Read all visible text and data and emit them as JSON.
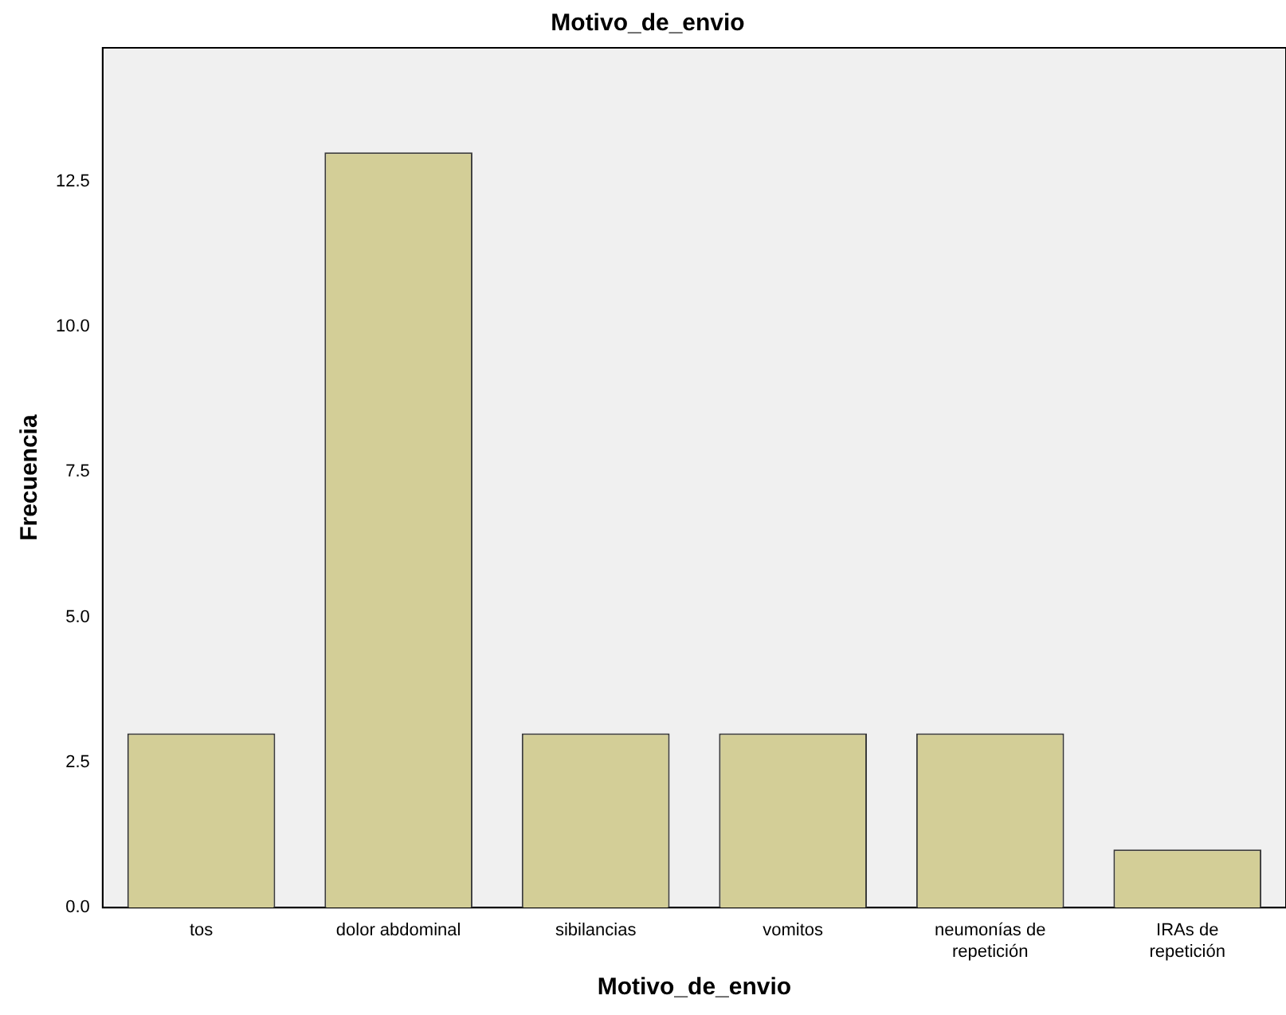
{
  "chart_data": {
    "type": "bar",
    "title": "Motivo_de_envio",
    "xlabel": "Motivo_de_envio",
    "ylabel": "Frecuencia",
    "categories": [
      "tos",
      "dolor abdominal",
      "sibilancias",
      "vomitos",
      "neumonías de repetición",
      "IRAs de repetición"
    ],
    "values": [
      3,
      13,
      3,
      3,
      3,
      1
    ],
    "color": "#d3ce97",
    "ylim": [
      0,
      14.8
    ],
    "yticks": [
      {
        "value": 0,
        "label": "0.0"
      },
      {
        "value": 2.5,
        "label": "2.5"
      },
      {
        "value": 5,
        "label": "5.0"
      },
      {
        "value": 7.5,
        "label": "7.5"
      },
      {
        "value": 10,
        "label": "10.0"
      },
      {
        "value": 12.5,
        "label": "12.5"
      }
    ],
    "grid": false,
    "legend": false
  }
}
